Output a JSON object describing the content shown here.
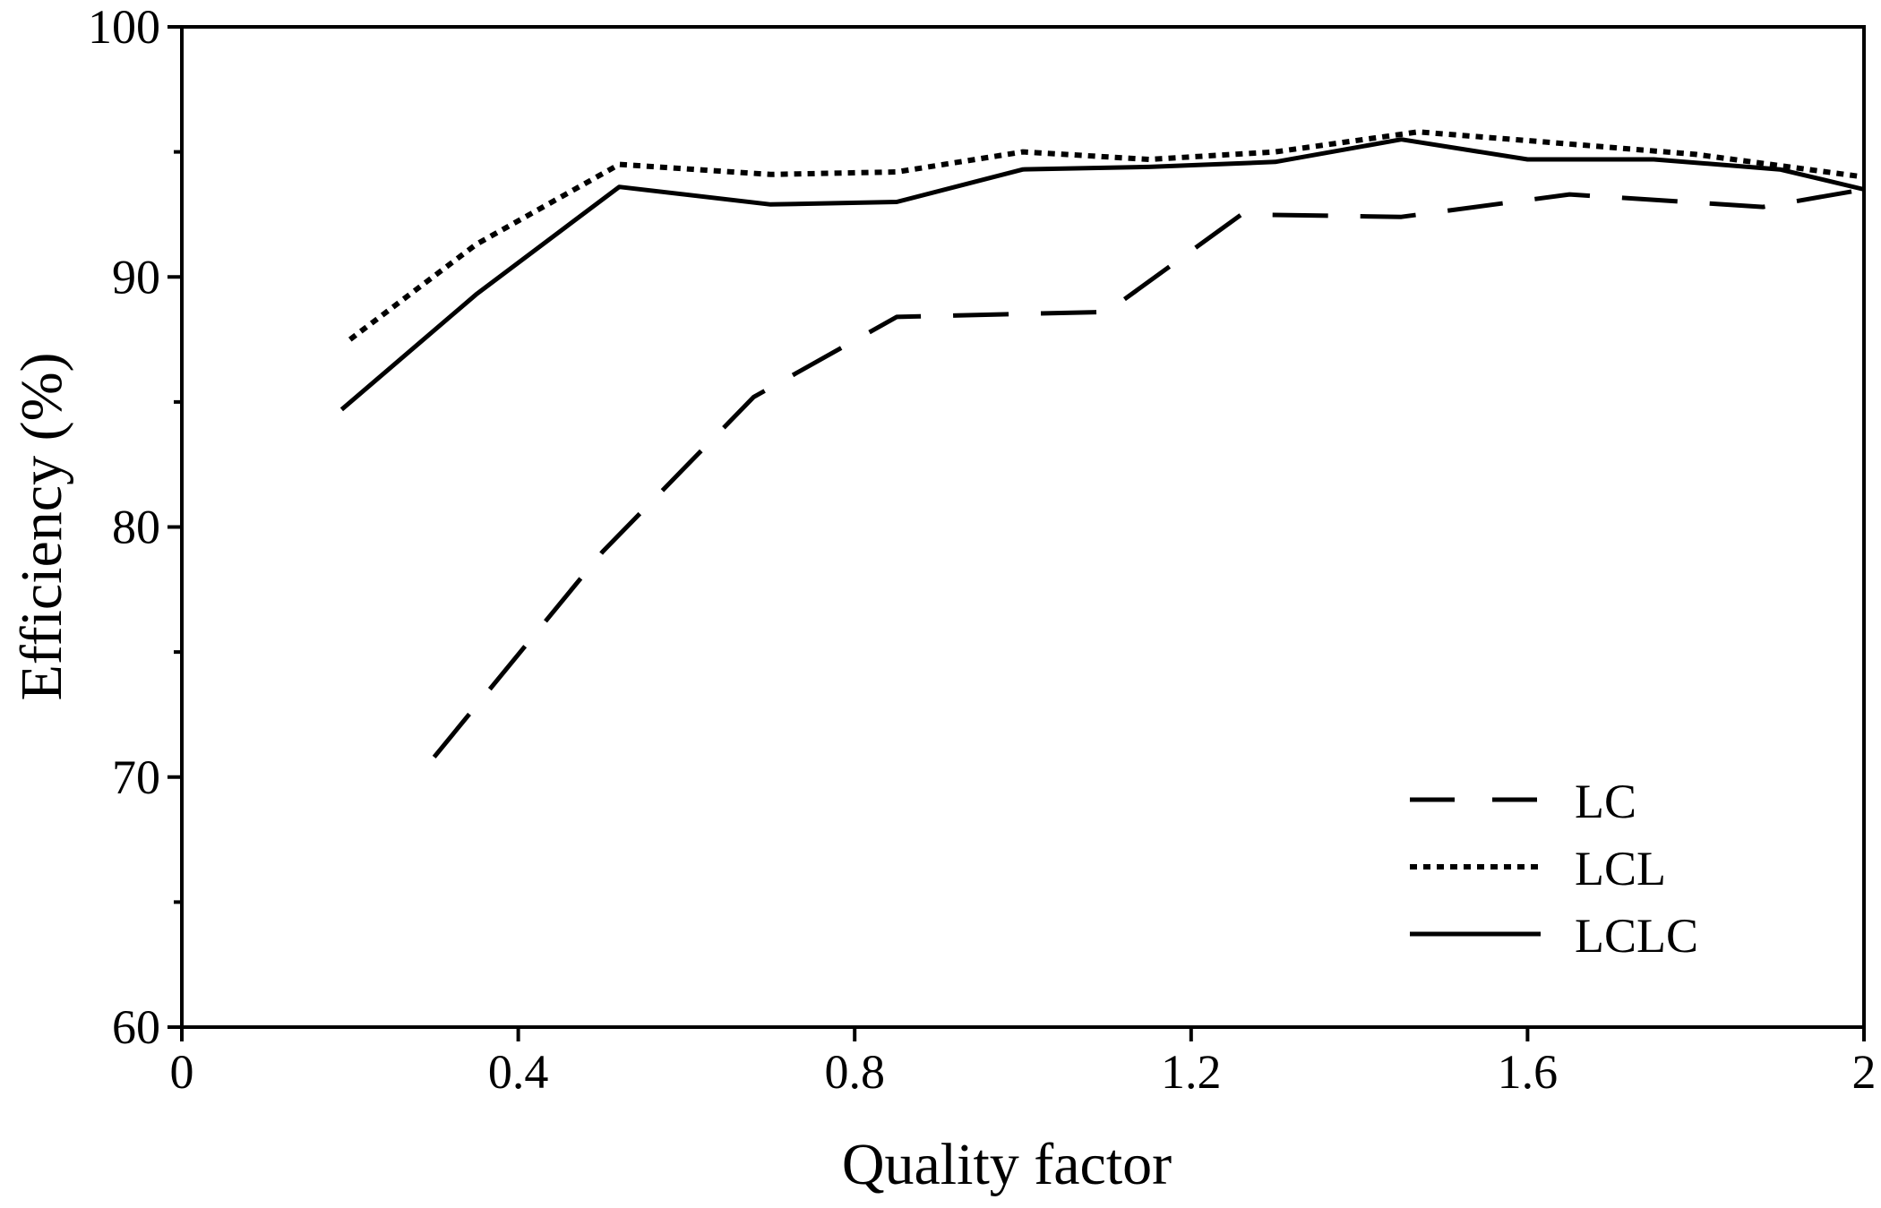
{
  "chart_data": {
    "type": "line",
    "title": "",
    "xlabel": "Quality factor",
    "ylabel": "Efficiency (%)",
    "xlim": [
      0,
      2
    ],
    "ylim": [
      60,
      100
    ],
    "x_ticks": [
      0,
      0.4,
      0.8,
      1.2,
      1.6,
      2
    ],
    "x_tick_labels": [
      "0",
      "0.4",
      "0.8",
      "1.2",
      "1.6",
      "2"
    ],
    "y_ticks": [
      60,
      70,
      80,
      90,
      100
    ],
    "y_tick_labels": [
      "60",
      "70",
      "80",
      "90",
      "100"
    ],
    "y_minor_ticks": [
      65,
      75,
      85,
      95
    ],
    "grid": false,
    "legend_position": "bottom-right",
    "series": [
      {
        "name": "LC",
        "style": "dashed",
        "x": [
          0.3,
          0.5,
          0.68,
          0.85,
          1.1,
          1.26,
          1.45,
          1.65,
          1.88,
          2.0
        ],
        "y": [
          70.8,
          79.0,
          85.2,
          88.4,
          88.6,
          92.5,
          92.4,
          93.3,
          92.8,
          93.5
        ]
      },
      {
        "name": "LCL",
        "style": "dotted",
        "x": [
          0.2,
          0.35,
          0.52,
          0.7,
          0.85,
          1.0,
          1.15,
          1.3,
          1.47,
          1.62,
          1.8,
          2.0
        ],
        "y": [
          87.5,
          91.3,
          94.5,
          94.1,
          94.2,
          95.0,
          94.7,
          95.0,
          95.8,
          95.4,
          94.9,
          94.0
        ]
      },
      {
        "name": "LCLC",
        "style": "solid",
        "x": [
          0.19,
          0.35,
          0.52,
          0.7,
          0.85,
          1.0,
          1.15,
          1.3,
          1.45,
          1.6,
          1.75,
          1.9,
          2.0
        ],
        "y": [
          84.7,
          89.3,
          93.6,
          92.9,
          93.0,
          94.3,
          94.4,
          94.6,
          95.5,
          94.7,
          94.7,
          94.3,
          93.5
        ]
      }
    ]
  }
}
